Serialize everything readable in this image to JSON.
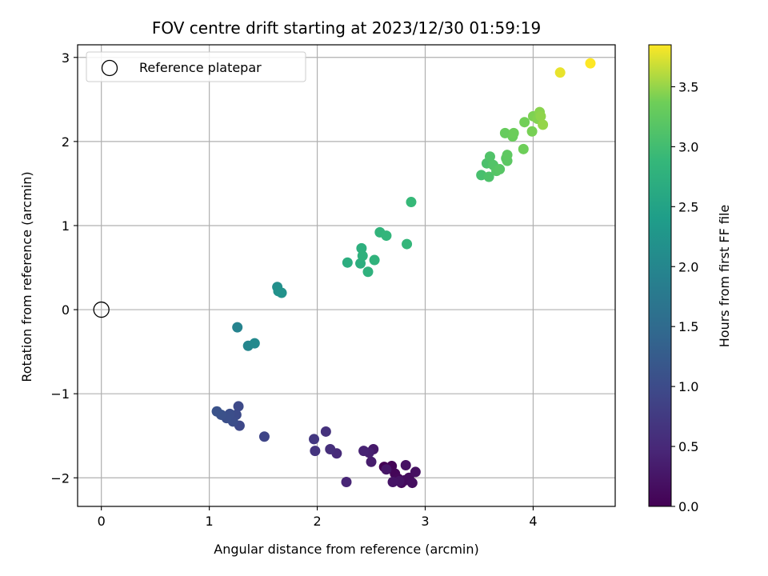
{
  "chart_data": {
    "type": "scatter",
    "title": "FOV centre drift starting at 2023/12/30 01:59:19",
    "xlabel": "Angular distance from reference (arcmin)",
    "ylabel": "Rotation from reference (arcmin)",
    "xlim": [
      -0.22,
      4.76
    ],
    "ylim": [
      -2.34,
      3.15
    ],
    "xticks": [
      0,
      1,
      2,
      3,
      4
    ],
    "yticks": [
      -2,
      -1,
      0,
      1,
      2,
      3
    ],
    "xtick_labels": [
      "0",
      "1",
      "2",
      "3",
      "4"
    ],
    "ytick_labels": [
      "−2",
      "−1",
      "0",
      "1",
      "2",
      "3"
    ],
    "grid": true,
    "legend": {
      "placement": "upper-left",
      "entries": [
        "Reference platepar"
      ]
    },
    "reference_point": {
      "x": 0,
      "y": 0,
      "label": "Reference platepar"
    },
    "colorbar": {
      "label": "Hours from first FF file",
      "range": [
        0.0,
        3.85
      ],
      "ticks": [
        0.0,
        0.5,
        1.0,
        1.5,
        2.0,
        2.5,
        3.0,
        3.5
      ],
      "tick_labels": [
        "0.0",
        "0.5",
        "1.0",
        "1.5",
        "2.0",
        "2.5",
        "3.0",
        "3.5"
      ],
      "colormap": "viridis"
    },
    "points": [
      {
        "x": 2.62,
        "y": -1.87,
        "c": 0.0
      },
      {
        "x": 2.66,
        "y": -1.89,
        "c": 0.02
      },
      {
        "x": 2.69,
        "y": -1.86,
        "c": 0.04
      },
      {
        "x": 2.72,
        "y": -1.95,
        "c": 0.06
      },
      {
        "x": 2.75,
        "y": -2.01,
        "c": 0.08
      },
      {
        "x": 2.78,
        "y": -2.06,
        "c": 0.1
      },
      {
        "x": 2.81,
        "y": -2.03,
        "c": 0.12
      },
      {
        "x": 2.85,
        "y": -2.0,
        "c": 0.14
      },
      {
        "x": 2.88,
        "y": -2.06,
        "c": 0.16
      },
      {
        "x": 2.91,
        "y": -1.93,
        "c": 0.18
      },
      {
        "x": 2.82,
        "y": -1.85,
        "c": 0.2
      },
      {
        "x": 2.76,
        "y": -2.04,
        "c": 0.22
      },
      {
        "x": 2.7,
        "y": -2.05,
        "c": 0.24
      },
      {
        "x": 2.64,
        "y": -1.9,
        "c": 0.26
      },
      {
        "x": 2.52,
        "y": -1.66,
        "c": 0.3
      },
      {
        "x": 2.5,
        "y": -1.81,
        "c": 0.34
      },
      {
        "x": 2.48,
        "y": -1.7,
        "c": 0.38
      },
      {
        "x": 2.43,
        "y": -1.68,
        "c": 0.42
      },
      {
        "x": 2.27,
        "y": -2.05,
        "c": 0.46
      },
      {
        "x": 2.18,
        "y": -1.71,
        "c": 0.52
      },
      {
        "x": 2.12,
        "y": -1.66,
        "c": 0.58
      },
      {
        "x": 2.08,
        "y": -1.45,
        "c": 0.62
      },
      {
        "x": 1.98,
        "y": -1.68,
        "c": 0.66
      },
      {
        "x": 1.97,
        "y": -1.54,
        "c": 0.7
      },
      {
        "x": 1.51,
        "y": -1.51,
        "c": 0.9
      },
      {
        "x": 1.28,
        "y": -1.38,
        "c": 0.95
      },
      {
        "x": 1.27,
        "y": -1.15,
        "c": 0.98
      },
      {
        "x": 1.25,
        "y": -1.25,
        "c": 1.0
      },
      {
        "x": 1.22,
        "y": -1.33,
        "c": 1.02
      },
      {
        "x": 1.19,
        "y": -1.24,
        "c": 1.04
      },
      {
        "x": 1.16,
        "y": -1.29,
        "c": 1.06
      },
      {
        "x": 1.11,
        "y": -1.25,
        "c": 1.08
      },
      {
        "x": 1.07,
        "y": -1.21,
        "c": 1.1
      },
      {
        "x": 1.26,
        "y": -0.21,
        "c": 1.95
      },
      {
        "x": 1.36,
        "y": -0.43,
        "c": 2.0
      },
      {
        "x": 1.42,
        "y": -0.4,
        "c": 2.05
      },
      {
        "x": 1.63,
        "y": 0.27,
        "c": 2.15
      },
      {
        "x": 1.64,
        "y": 0.22,
        "c": 2.18
      },
      {
        "x": 1.67,
        "y": 0.2,
        "c": 2.2
      },
      {
        "x": 2.28,
        "y": 0.56,
        "c": 2.7
      },
      {
        "x": 2.4,
        "y": 0.55,
        "c": 2.72
      },
      {
        "x": 2.41,
        "y": 0.73,
        "c": 2.74
      },
      {
        "x": 2.42,
        "y": 0.64,
        "c": 2.76
      },
      {
        "x": 2.47,
        "y": 0.45,
        "c": 2.78
      },
      {
        "x": 2.53,
        "y": 0.59,
        "c": 2.8
      },
      {
        "x": 2.58,
        "y": 0.92,
        "c": 2.82
      },
      {
        "x": 2.64,
        "y": 0.88,
        "c": 2.84
      },
      {
        "x": 2.83,
        "y": 0.78,
        "c": 2.86
      },
      {
        "x": 2.87,
        "y": 1.28,
        "c": 2.9
      },
      {
        "x": 3.52,
        "y": 1.6,
        "c": 3.05
      },
      {
        "x": 3.57,
        "y": 1.74,
        "c": 3.08
      },
      {
        "x": 3.59,
        "y": 1.58,
        "c": 3.1
      },
      {
        "x": 3.6,
        "y": 1.82,
        "c": 3.12
      },
      {
        "x": 3.63,
        "y": 1.72,
        "c": 3.14
      },
      {
        "x": 3.66,
        "y": 1.65,
        "c": 3.16
      },
      {
        "x": 3.69,
        "y": 1.67,
        "c": 3.18
      },
      {
        "x": 3.75,
        "y": 1.8,
        "c": 3.2
      },
      {
        "x": 3.76,
        "y": 1.77,
        "c": 3.22
      },
      {
        "x": 3.76,
        "y": 1.84,
        "c": 3.24
      },
      {
        "x": 3.74,
        "y": 2.1,
        "c": 3.3
      },
      {
        "x": 3.81,
        "y": 2.06,
        "c": 3.32
      },
      {
        "x": 3.82,
        "y": 2.1,
        "c": 3.34
      },
      {
        "x": 3.91,
        "y": 1.91,
        "c": 3.36
      },
      {
        "x": 3.92,
        "y": 2.23,
        "c": 3.38
      },
      {
        "x": 3.99,
        "y": 2.12,
        "c": 3.4
      },
      {
        "x": 4.0,
        "y": 2.3,
        "c": 3.42
      },
      {
        "x": 4.04,
        "y": 2.27,
        "c": 3.44
      },
      {
        "x": 4.06,
        "y": 2.35,
        "c": 3.46
      },
      {
        "x": 4.07,
        "y": 2.3,
        "c": 3.48
      },
      {
        "x": 4.09,
        "y": 2.2,
        "c": 3.5
      },
      {
        "x": 4.25,
        "y": 2.82,
        "c": 3.78
      },
      {
        "x": 4.53,
        "y": 2.93,
        "c": 3.85
      }
    ]
  }
}
